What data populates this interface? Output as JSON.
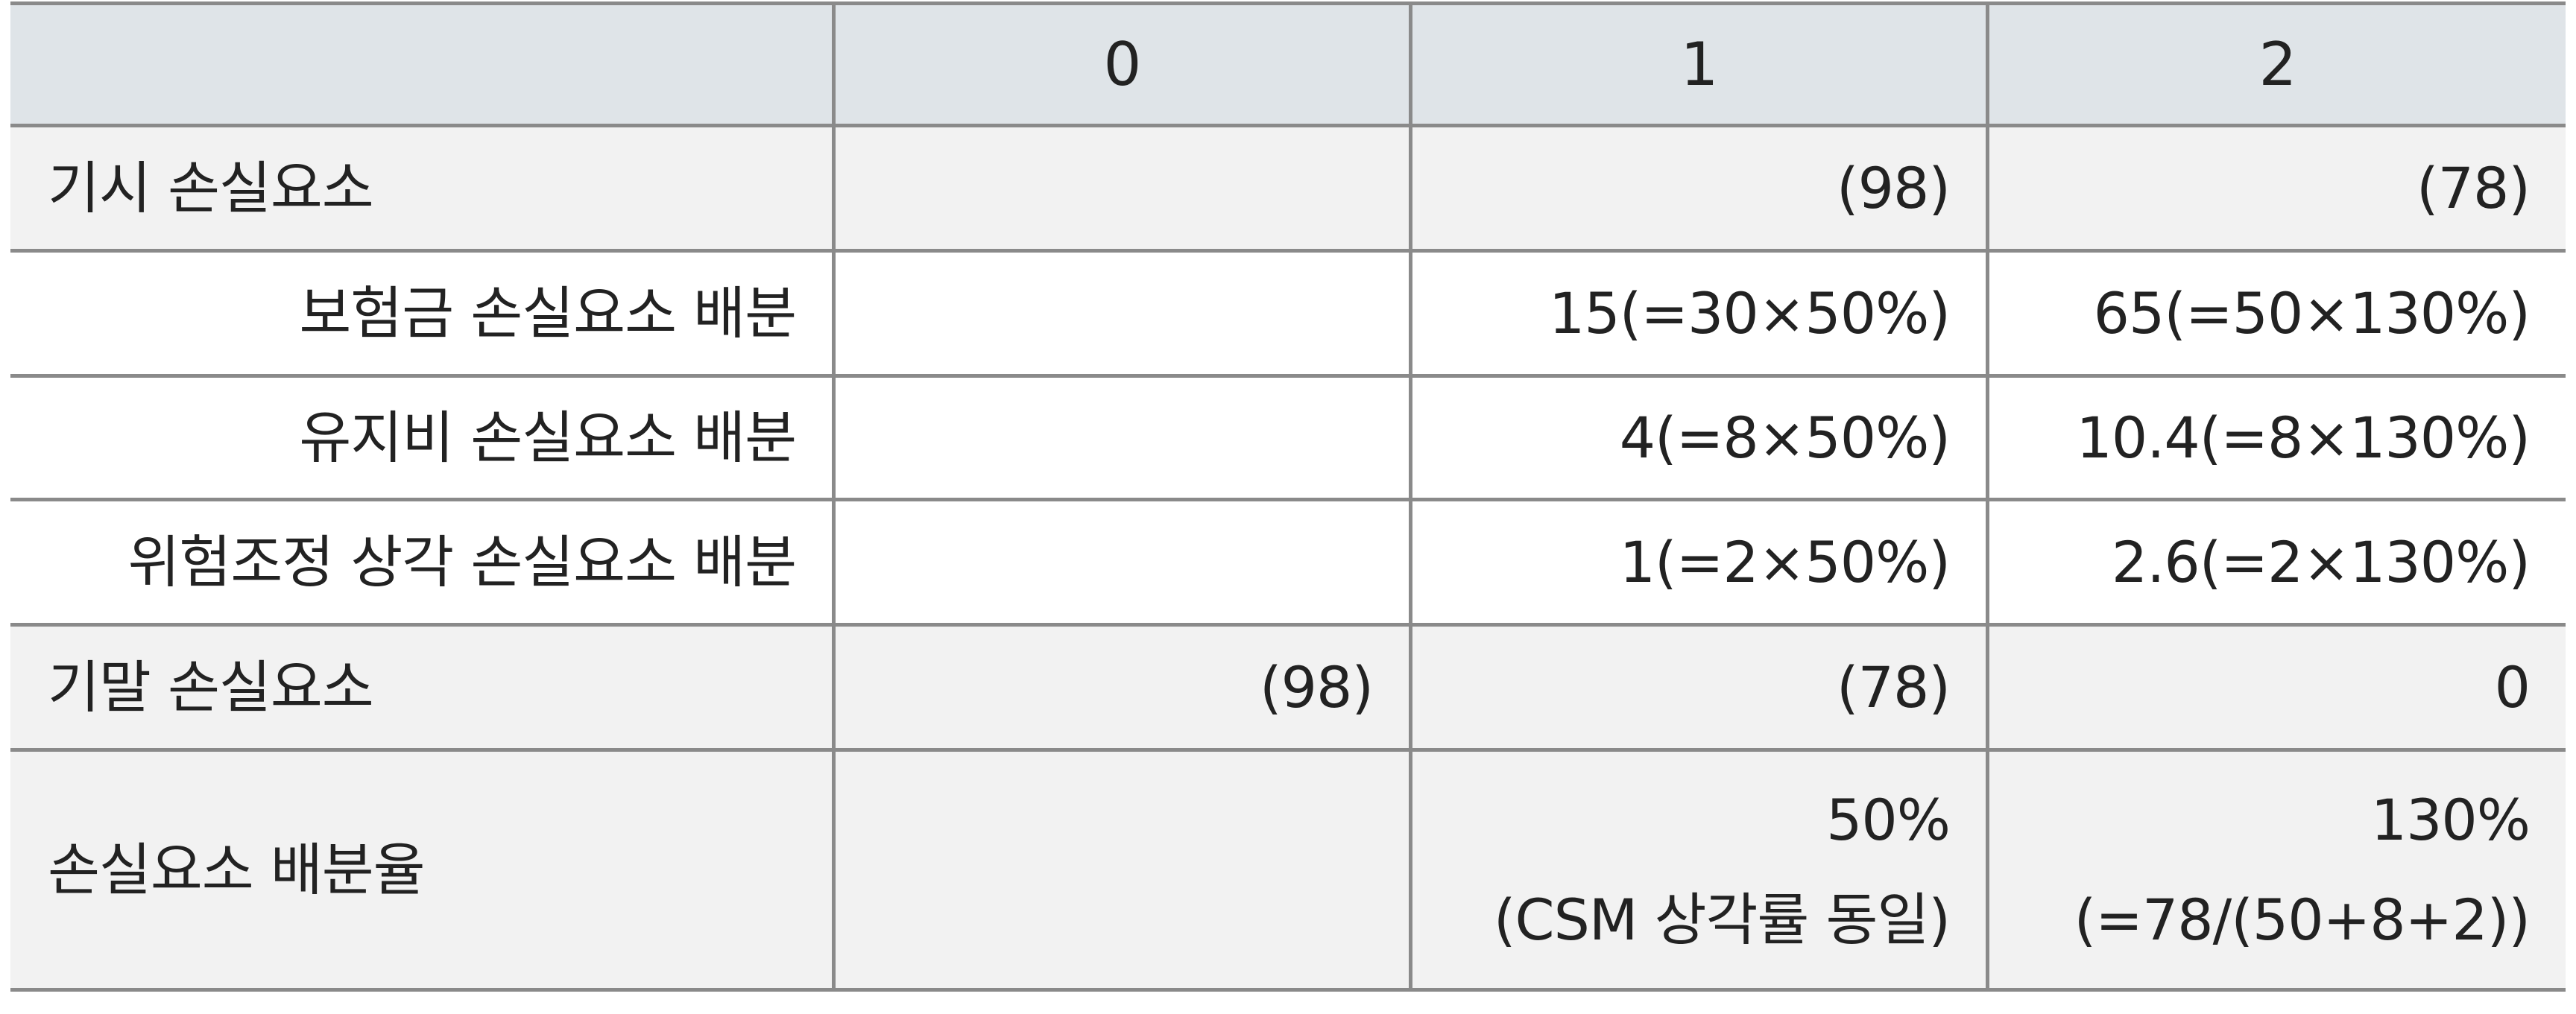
{
  "header": {
    "col0": "",
    "col1": "0",
    "col2": "1",
    "col3": "2"
  },
  "rows": [
    {
      "label": "기시 손실요소",
      "c0": "",
      "c1": "(98)",
      "c2": "(78)"
    },
    {
      "label": "보험금 손실요소 배분",
      "c0": "",
      "c1": "15(=30×50%)",
      "c2": "65(=50×130%)"
    },
    {
      "label": "유지비 손실요소 배분",
      "c0": "",
      "c1": "4(=8×50%)",
      "c2": "10.4(=8×130%)"
    },
    {
      "label": "위험조정 상각 손실요소 배분",
      "c0": "",
      "c1": "1(=2×50%)",
      "c2": "2.6(=2×130%)"
    },
    {
      "label": "기말 손실요소",
      "c0": "(98)",
      "c1": "(78)",
      "c2": "0"
    },
    {
      "label": "손실요소 배분율",
      "c0": "",
      "c1_line1": "50%",
      "c1_line2": "(CSM 상각률 동일)",
      "c2_line1": "130%",
      "c2_line2": "(=78/(50+8+2))"
    }
  ],
  "colors": {
    "header_bg": "#dfe4e8",
    "shaded_row_bg": "#f2f2f2",
    "white_row_bg": "#ffffff",
    "rule": "#8a8a8a"
  }
}
